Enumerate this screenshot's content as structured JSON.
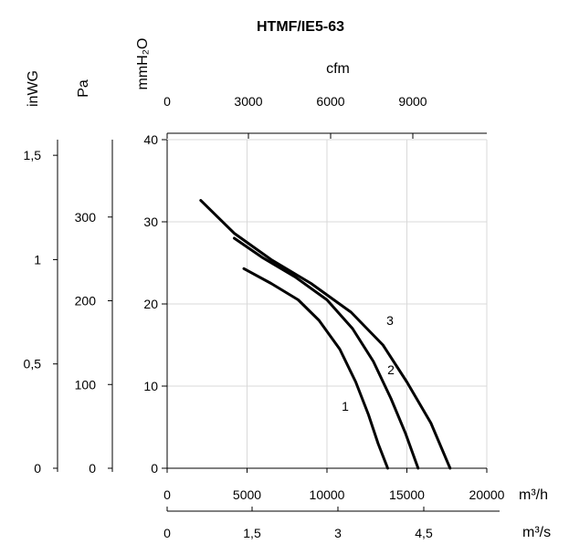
{
  "chart_data": {
    "type": "line",
    "title": "HTMF/IE5-63",
    "x_axes": {
      "m3h": {
        "label": "m³/h",
        "ticks": [
          "0",
          "5000",
          "10000",
          "15000",
          "20000"
        ],
        "range": [
          0,
          20000
        ]
      },
      "m3s": {
        "label": "m³/s",
        "ticks": [
          "0",
          "1,5",
          "3",
          "4,5"
        ]
      },
      "cfm": {
        "label": "cfm",
        "ticks": [
          "0",
          "3000",
          "6000",
          "9000"
        ]
      }
    },
    "y_axes": {
      "mmH2O": {
        "label": "mmH₂O",
        "ticks": [
          "0",
          "10",
          "20",
          "30",
          "40"
        ],
        "range": [
          0,
          40
        ]
      },
      "Pa": {
        "label": "Pa",
        "ticks": [
          "0",
          "100",
          "200",
          "300"
        ]
      },
      "inWG": {
        "label": "inWG",
        "ticks": [
          "0",
          "0,5",
          "1",
          "1,5"
        ]
      }
    },
    "grid": true,
    "series": [
      {
        "name": "1",
        "x": [
          4800,
          6500,
          8200,
          9500,
          10800,
          11800,
          12600,
          13200,
          13800
        ],
        "y": [
          24.3,
          22.5,
          20.5,
          18.0,
          14.5,
          10.5,
          6.5,
          3.0,
          0
        ]
      },
      {
        "name": "2",
        "x": [
          4200,
          6000,
          8000,
          10000,
          11600,
          12900,
          14000,
          14900,
          15700
        ],
        "y": [
          28.0,
          25.6,
          23.3,
          20.5,
          17.0,
          13.0,
          8.5,
          4.3,
          0
        ]
      },
      {
        "name": "3",
        "x": [
          2100,
          4200,
          6500,
          9000,
          11500,
          13500,
          15000,
          16500,
          17700
        ],
        "y": [
          32.6,
          28.6,
          25.4,
          22.5,
          19.0,
          15.0,
          10.5,
          5.5,
          0
        ]
      }
    ]
  }
}
